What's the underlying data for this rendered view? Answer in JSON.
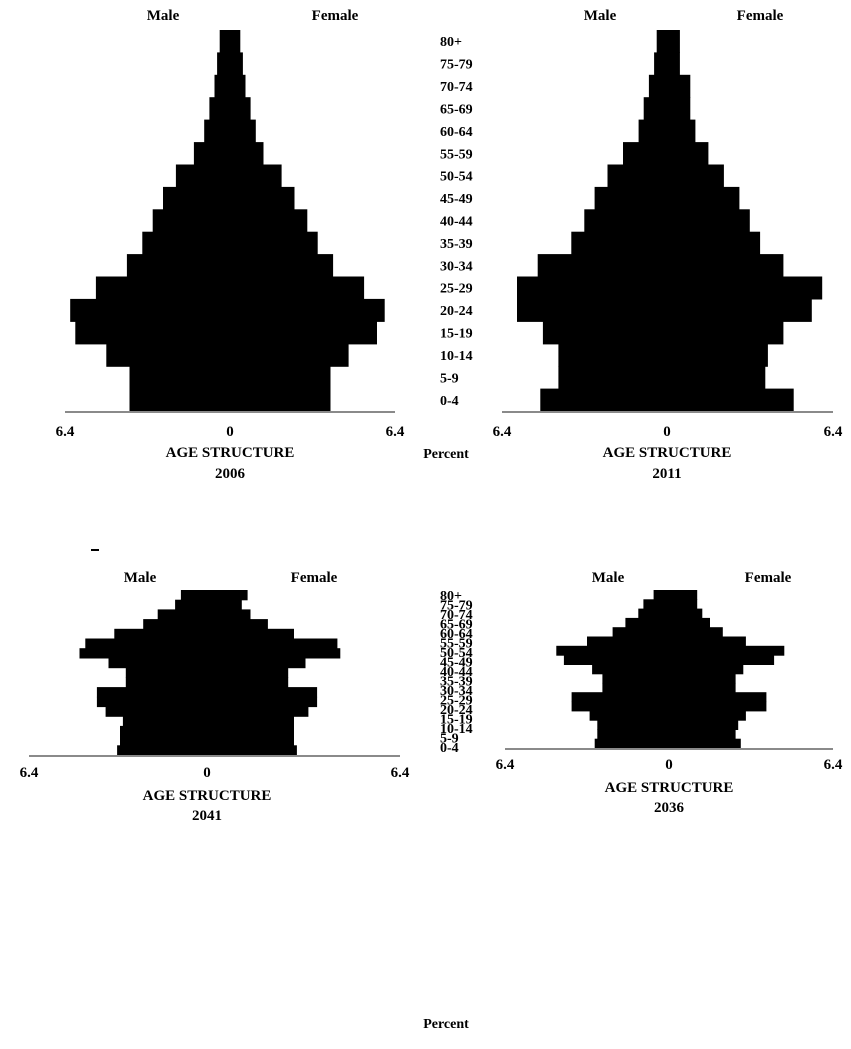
{
  "age_groups": [
    "0-4",
    "5-9",
    "10-14",
    "15-19",
    "20-24",
    "25-29",
    "30-34",
    "35-39",
    "40-44",
    "45-49",
    "50-54",
    "55-59",
    "60-64",
    "65-69",
    "70-74",
    "75-79",
    "80+"
  ],
  "percent_label": "Percent",
  "chart_data": [
    {
      "type": "bar",
      "title": "AGE STRUCTURE",
      "year": "2006",
      "male_label": "Male",
      "female_label": "Female",
      "xlim": [
        -6.4,
        6.4
      ],
      "ticks": [
        "6.4",
        "0",
        "6.4"
      ],
      "categories": [
        "0-4",
        "5-9",
        "10-14",
        "15-19",
        "20-24",
        "25-29",
        "30-34",
        "35-39",
        "40-44",
        "45-49",
        "50-54",
        "55-59",
        "60-64",
        "65-69",
        "70-74",
        "75-79",
        "80+"
      ],
      "series": [
        {
          "name": "Male",
          "values": [
            3.9,
            3.9,
            4.8,
            6.0,
            6.2,
            5.2,
            4.0,
            3.4,
            3.0,
            2.6,
            2.1,
            1.4,
            1.0,
            0.8,
            0.6,
            0.5,
            0.4
          ]
        },
        {
          "name": "Female",
          "values": [
            3.9,
            3.9,
            4.6,
            5.7,
            6.0,
            5.2,
            4.0,
            3.4,
            3.0,
            2.5,
            2.0,
            1.3,
            1.0,
            0.8,
            0.6,
            0.5,
            0.4
          ]
        }
      ]
    },
    {
      "type": "bar",
      "title": "AGE STRUCTURE",
      "year": "2011",
      "male_label": "Male",
      "female_label": "Female",
      "xlim": [
        -6.4,
        6.4
      ],
      "ticks": [
        "6.4",
        "0",
        "6.4"
      ],
      "categories": [
        "0-4",
        "5-9",
        "10-14",
        "15-19",
        "20-24",
        "25-29",
        "30-34",
        "35-39",
        "40-44",
        "45-49",
        "50-54",
        "55-59",
        "60-64",
        "65-69",
        "70-74",
        "75-79",
        "80+"
      ],
      "series": [
        {
          "name": "Male",
          "values": [
            4.9,
            4.2,
            4.2,
            4.8,
            5.8,
            5.8,
            5.0,
            3.7,
            3.2,
            2.8,
            2.3,
            1.7,
            1.1,
            0.9,
            0.7,
            0.5,
            0.4
          ]
        },
        {
          "name": "Female",
          "values": [
            4.9,
            3.8,
            3.9,
            4.5,
            5.6,
            6.0,
            4.5,
            3.6,
            3.2,
            2.8,
            2.2,
            1.6,
            1.1,
            0.9,
            0.9,
            0.5,
            0.5
          ]
        }
      ]
    },
    {
      "type": "bar",
      "title": "AGE STRUCTURE",
      "year": "2041",
      "male_label": "Male",
      "female_label": "Female",
      "xlim": [
        -6.4,
        6.4
      ],
      "ticks": [
        "6.4",
        "0",
        "6.4"
      ],
      "categories": [
        "0-4",
        "5-9",
        "10-14",
        "15-19",
        "20-24",
        "25-29",
        "30-34",
        "35-39",
        "40-44",
        "45-49",
        "50-54",
        "55-59",
        "60-64",
        "65-69",
        "70-74",
        "75-79",
        "80+"
      ],
      "series": [
        {
          "name": "Male",
          "values": [
            3.1,
            3.0,
            3.0,
            2.9,
            3.5,
            3.8,
            3.8,
            2.8,
            2.8,
            3.4,
            4.4,
            4.2,
            3.2,
            2.2,
            1.7,
            1.1,
            0.9
          ]
        },
        {
          "name": "Female",
          "values": [
            3.1,
            3.0,
            3.0,
            3.0,
            3.5,
            3.8,
            3.8,
            2.8,
            2.8,
            3.4,
            4.6,
            4.5,
            3.0,
            2.1,
            1.5,
            1.2,
            1.4
          ]
        }
      ]
    },
    {
      "type": "bar",
      "title": "AGE STRUCTURE",
      "year": "2036",
      "male_label": "Male",
      "female_label": "Female",
      "xlim": [
        -6.4,
        6.4
      ],
      "ticks": [
        "6.4",
        "0",
        "6.4"
      ],
      "categories": [
        "0-4",
        "5-9",
        "10-14",
        "15-19",
        "20-24",
        "25-29",
        "30-34",
        "35-39",
        "40-44",
        "45-49",
        "50-54",
        "55-59",
        "60-64",
        "65-69",
        "70-74",
        "75-79",
        "80+"
      ],
      "series": [
        {
          "name": "Male",
          "values": [
            2.9,
            2.8,
            2.8,
            3.1,
            3.8,
            3.8,
            2.6,
            2.6,
            3.0,
            4.1,
            4.4,
            3.2,
            2.2,
            1.7,
            1.2,
            1.0,
            0.6
          ]
        },
        {
          "name": "Female",
          "values": [
            2.8,
            2.6,
            2.7,
            3.0,
            3.8,
            3.8,
            2.6,
            2.6,
            2.9,
            4.1,
            4.5,
            3.0,
            2.1,
            1.6,
            1.3,
            1.1,
            1.1
          ]
        }
      ]
    }
  ]
}
